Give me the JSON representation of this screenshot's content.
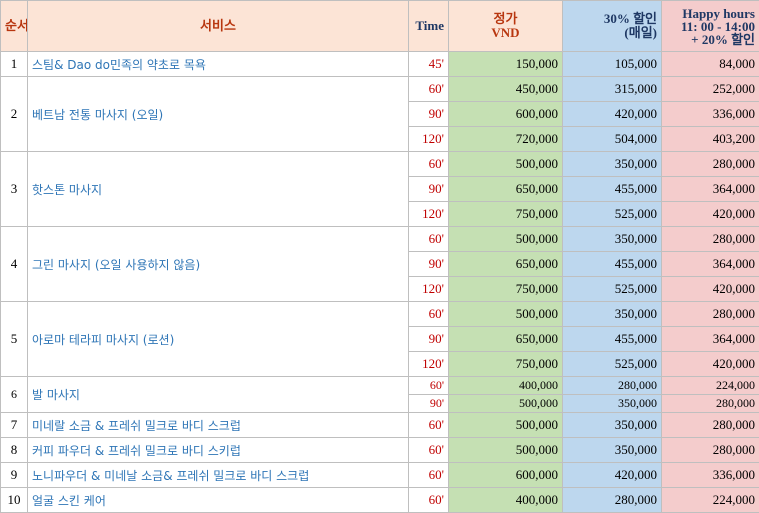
{
  "header": {
    "no": "순서",
    "service": "서비스",
    "time": "Time",
    "price_line1": "정가",
    "price_line2": "VND",
    "disc_line1": "30% 할인",
    "disc_line2": "(매일)",
    "happy_line1": "Happy hours",
    "happy_line2": "11: 00 - 14:00",
    "happy_line3": "+ 20% 할인"
  },
  "services": [
    {
      "no": "1",
      "name": "스팀& Dao do민족의 약초로 목욕",
      "rows": [
        {
          "time": "45'",
          "price": "150,000",
          "disc": "105,000",
          "happy": "84,000"
        }
      ]
    },
    {
      "no": "2",
      "name": "베트남 전통 마사지 (오일)",
      "rows": [
        {
          "time": "60'",
          "price": "450,000",
          "disc": "315,000",
          "happy": "252,000"
        },
        {
          "time": "90'",
          "price": "600,000",
          "disc": "420,000",
          "happy": "336,000"
        },
        {
          "time": "120'",
          "price": "720,000",
          "disc": "504,000",
          "happy": "403,200"
        }
      ]
    },
    {
      "no": "3",
      "name": "핫스톤 마사지",
      "rows": [
        {
          "time": "60'",
          "price": "500,000",
          "disc": "350,000",
          "happy": "280,000"
        },
        {
          "time": "90'",
          "price": "650,000",
          "disc": "455,000",
          "happy": "364,000"
        },
        {
          "time": "120'",
          "price": "750,000",
          "disc": "525,000",
          "happy": "420,000"
        }
      ]
    },
    {
      "no": "4",
      "name": "그린 마사지 (오일 사용하지 않음)",
      "rows": [
        {
          "time": "60'",
          "price": "500,000",
          "disc": "350,000",
          "happy": "280,000"
        },
        {
          "time": "90'",
          "price": "650,000",
          "disc": "455,000",
          "happy": "364,000"
        },
        {
          "time": "120'",
          "price": "750,000",
          "disc": "525,000",
          "happy": "420,000"
        }
      ]
    },
    {
      "no": "5",
      "name": "아로마 테라피 마사지 (로션)",
      "rows": [
        {
          "time": "60'",
          "price": "500,000",
          "disc": "350,000",
          "happy": "280,000"
        },
        {
          "time": "90'",
          "price": "650,000",
          "disc": "455,000",
          "happy": "364,000"
        },
        {
          "time": "120'",
          "price": "750,000",
          "disc": "525,000",
          "happy": "420,000"
        }
      ]
    },
    {
      "no": "6",
      "name": "발 마사지",
      "small": true,
      "rows": [
        {
          "time": "60'",
          "price": "400,000",
          "disc": "280,000",
          "happy": "224,000"
        },
        {
          "time": "90'",
          "price": "500,000",
          "disc": "350,000",
          "happy": "280,000"
        }
      ]
    },
    {
      "no": "7",
      "name": "미네랄 소금 & 프레쉬 밀크로 바디 스크럽",
      "rows": [
        {
          "time": "60'",
          "price": "500,000",
          "disc": "350,000",
          "happy": "280,000"
        }
      ]
    },
    {
      "no": "8",
      "name": "커피 파우더 & 프레쉬 밀크로 바디 스키럽",
      "rows": [
        {
          "time": "60'",
          "price": "500,000",
          "disc": "350,000",
          "happy": "280,000"
        }
      ]
    },
    {
      "no": "9",
      "name": "노니파우더 & 미네날 소금& 프레쉬 밀크로 바디 스크럽",
      "rows": [
        {
          "time": "60'",
          "price": "600,000",
          "disc": "420,000",
          "happy": "336,000"
        }
      ]
    },
    {
      "no": "10",
      "name": "얼굴 스킨 케어",
      "rows": [
        {
          "time": "60'",
          "price": "400,000",
          "disc": "280,000",
          "happy": "224,000"
        }
      ]
    }
  ]
}
